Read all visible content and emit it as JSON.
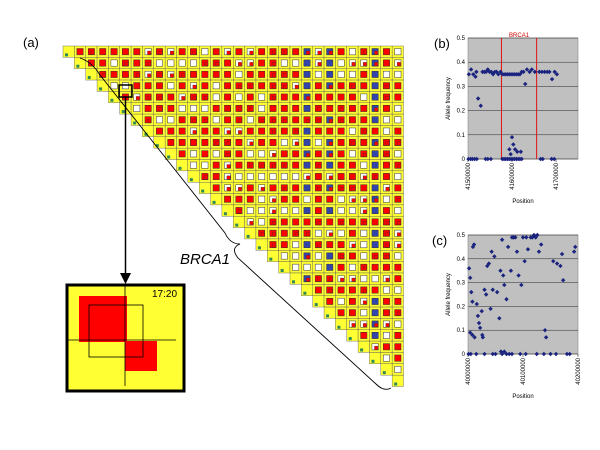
{
  "panels": {
    "a_label": "(a)",
    "b_label": "(b)",
    "c_label": "(c)"
  },
  "heatmap": {
    "gene_label": "BRCA1",
    "inset_time": "17:20",
    "colors": {
      "cell_fill": "#ffff33",
      "low_ld": "#ffffff",
      "high_ld": "#ff0000",
      "sample": "#3344aa",
      "diag_marker": "#2e8b57"
    }
  },
  "chart_data": [
    {
      "id": "b",
      "type": "scatter",
      "xlabel": "Position",
      "ylabel": "Allele frequency",
      "xlim": [
        41500000,
        41750000
      ],
      "ylim": [
        0,
        0.5
      ],
      "x_ticks": [
        41500000,
        41600000,
        41700000
      ],
      "x_tick_labels": [
        "41500000",
        "41600000",
        "41700000"
      ],
      "y_ticks": [
        0,
        0.1,
        0.2,
        0.3,
        0.4,
        0.5
      ],
      "y_tick_labels": [
        "0",
        "0.1",
        "0.2",
        "0.3",
        "0.4",
        "0.5"
      ],
      "grid": true,
      "background": "#c0c0c0",
      "marker_color": "#1a237e",
      "region": {
        "label": "BRCA1",
        "x_start": 41576000,
        "x_end": 41656000,
        "color": "#e01010"
      },
      "points": [
        [
          41502000,
          0.35
        ],
        [
          41507000,
          0.37
        ],
        [
          41512000,
          0.35
        ],
        [
          41517000,
          0.34
        ],
        [
          41519000,
          0.36
        ],
        [
          41523000,
          0.25
        ],
        [
          41529000,
          0.22
        ],
        [
          41533000,
          0.36
        ],
        [
          41537000,
          0.36
        ],
        [
          41541000,
          0.36
        ],
        [
          41545000,
          0.37
        ],
        [
          41549000,
          0.36
        ],
        [
          41553000,
          0.36
        ],
        [
          41557000,
          0.35
        ],
        [
          41561000,
          0.36
        ],
        [
          41565000,
          0.36
        ],
        [
          41569000,
          0.35
        ],
        [
          41574000,
          0.36
        ],
        [
          41578000,
          0.35
        ],
        [
          41582000,
          0.35
        ],
        [
          41586000,
          0.35
        ],
        [
          41590000,
          0.35
        ],
        [
          41594000,
          0.35
        ],
        [
          41598000,
          0.35
        ],
        [
          41602000,
          0.35
        ],
        [
          41606000,
          0.35
        ],
        [
          41610000,
          0.35
        ],
        [
          41614000,
          0.35
        ],
        [
          41618000,
          0.35
        ],
        [
          41622000,
          0.36
        ],
        [
          41626000,
          0.36
        ],
        [
          41630000,
          0.31
        ],
        [
          41634000,
          0.37
        ],
        [
          41640000,
          0.36
        ],
        [
          41645000,
          0.37
        ],
        [
          41652000,
          0.36
        ],
        [
          41662000,
          0.36
        ],
        [
          41668000,
          0.36
        ],
        [
          41674000,
          0.36
        ],
        [
          41680000,
          0.36
        ],
        [
          41685000,
          0.36
        ],
        [
          41691000,
          0.33
        ],
        [
          41697000,
          0.36
        ],
        [
          41702000,
          0.35
        ],
        [
          41600000,
          0.09
        ],
        [
          41603000,
          0.06
        ],
        [
          41607000,
          0.04
        ],
        [
          41594000,
          0.04
        ],
        [
          41612000,
          0.03
        ],
        [
          41597000,
          0.02
        ],
        [
          41620000,
          0.03
        ],
        [
          41501000,
          0.0
        ],
        [
          41506000,
          0.0
        ],
        [
          41510000,
          0.0
        ],
        [
          41515000,
          0.0
        ],
        [
          41520000,
          0.0
        ],
        [
          41540000,
          0.0
        ],
        [
          41545000,
          0.0
        ],
        [
          41552000,
          0.0
        ],
        [
          41578000,
          0.0
        ],
        [
          41582000,
          0.0
        ],
        [
          41586000,
          0.0
        ],
        [
          41590000,
          0.0
        ],
        [
          41594000,
          0.0
        ],
        [
          41598000,
          0.0
        ],
        [
          41602000,
          0.0
        ],
        [
          41606000,
          0.0
        ],
        [
          41610000,
          0.0
        ],
        [
          41614000,
          0.0
        ],
        [
          41618000,
          0.0
        ],
        [
          41622000,
          0.0
        ],
        [
          41665000,
          0.0
        ],
        [
          41670000,
          0.0
        ],
        [
          41690000,
          0.0
        ],
        [
          41696000,
          0.0
        ]
      ]
    },
    {
      "id": "c",
      "type": "scatter",
      "xlabel": "Position",
      "ylabel": "Allele frequency",
      "xlim": [
        40000000,
        40200000
      ],
      "ylim": [
        0,
        0.5
      ],
      "x_ticks": [
        40000000,
        40100000,
        40200000
      ],
      "x_tick_labels": [
        "40000000",
        "40100000",
        "40200000"
      ],
      "y_ticks": [
        0,
        0.1,
        0.2,
        0.3,
        0.4,
        0.5
      ],
      "y_tick_labels": [
        "0",
        "0.1",
        "0.2",
        "0.3",
        "0.4",
        "0.5"
      ],
      "grid": true,
      "background": "#c0c0c0",
      "marker_color": "#1a237e",
      "points": [
        [
          40002000,
          0.36
        ],
        [
          40004000,
          0.32
        ],
        [
          40006000,
          0.26
        ],
        [
          40008000,
          0.22
        ],
        [
          40009000,
          0.45
        ],
        [
          40011000,
          0.46
        ],
        [
          40004000,
          0.09
        ],
        [
          40008000,
          0.08
        ],
        [
          40012000,
          0.07
        ],
        [
          40016000,
          0.21
        ],
        [
          40018000,
          0.16
        ],
        [
          40020000,
          0.13
        ],
        [
          40022000,
          0.11
        ],
        [
          40025000,
          0.18
        ],
        [
          40026000,
          0.08
        ],
        [
          40027000,
          0.07
        ],
        [
          40030000,
          0.27
        ],
        [
          40033000,
          0.25
        ],
        [
          40035000,
          0.37
        ],
        [
          40038000,
          0.38
        ],
        [
          40041000,
          0.19
        ],
        [
          40043000,
          0.43
        ],
        [
          40045000,
          0.27
        ],
        [
          40048000,
          0.41
        ],
        [
          40053000,
          0.26
        ],
        [
          40057000,
          0.15
        ],
        [
          40059000,
          0.35
        ],
        [
          40062000,
          0.48
        ],
        [
          40064000,
          0.33
        ],
        [
          40066000,
          0.29
        ],
        [
          40070000,
          0.23
        ],
        [
          40073000,
          0.45
        ],
        [
          40078000,
          0.35
        ],
        [
          40080000,
          0.49
        ],
        [
          40083000,
          0.49
        ],
        [
          40086000,
          0.49
        ],
        [
          40089000,
          0.43
        ],
        [
          40092000,
          0.33
        ],
        [
          40097000,
          0.29
        ],
        [
          40100000,
          0.49
        ],
        [
          40103000,
          0.39
        ],
        [
          40106000,
          0.49
        ],
        [
          40109000,
          0.44
        ],
        [
          40114000,
          0.49
        ],
        [
          40117000,
          0.49
        ],
        [
          40120000,
          0.5
        ],
        [
          40123000,
          0.49
        ],
        [
          40126000,
          0.5
        ],
        [
          40129000,
          0.43
        ],
        [
          40133000,
          0.46
        ],
        [
          40140000,
          0.1
        ],
        [
          40155000,
          0.39
        ],
        [
          40162000,
          0.38
        ],
        [
          40168000,
          0.37
        ],
        [
          40171000,
          0.42
        ],
        [
          40173000,
          0.31
        ],
        [
          40193000,
          0.43
        ],
        [
          40195000,
          0.45
        ],
        [
          40142000,
          0.07
        ],
        [
          40001000,
          0.0
        ],
        [
          40005000,
          0.0
        ],
        [
          40015000,
          0.0
        ],
        [
          40030000,
          0.0
        ],
        [
          40045000,
          0.0
        ],
        [
          40050000,
          0.0
        ],
        [
          40060000,
          0.01
        ],
        [
          40062000,
          0.0
        ],
        [
          40066000,
          0.01
        ],
        [
          40070000,
          0.0
        ],
        [
          40075000,
          0.0
        ],
        [
          40080000,
          0.0
        ],
        [
          40095000,
          0.0
        ],
        [
          40105000,
          0.0
        ],
        [
          40125000,
          0.0
        ],
        [
          40138000,
          0.0
        ],
        [
          40150000,
          0.0
        ],
        [
          40160000,
          0.0
        ],
        [
          40180000,
          0.0
        ],
        [
          40185000,
          0.0
        ]
      ]
    }
  ]
}
